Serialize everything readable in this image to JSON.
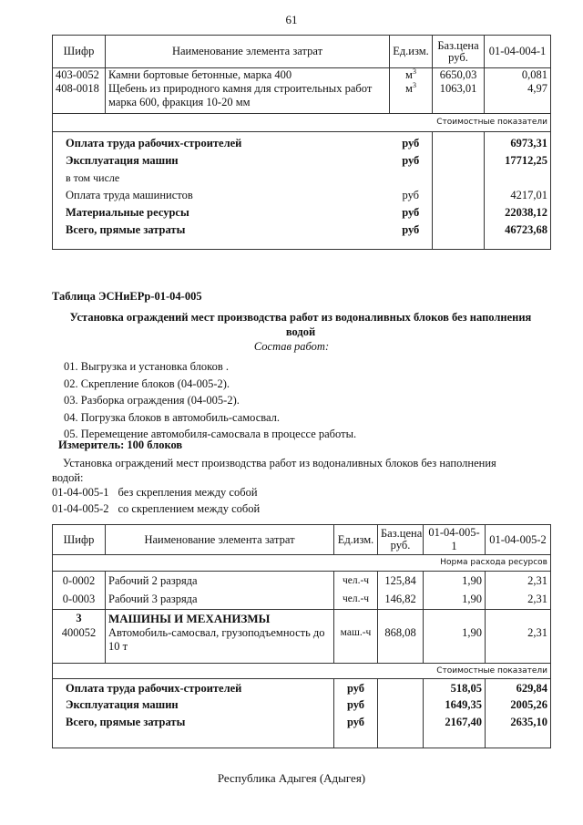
{
  "page_number": "61",
  "table1": {
    "headers": [
      "Шифр",
      "Наименование элемента затрат",
      "Ед.изм.",
      "Баз.цена руб.",
      "01-04-004-1"
    ],
    "rows": [
      {
        "code": "403-0052",
        "name": "Камни бортовые бетонные, марка 400",
        "unit": "м",
        "unit_sup": "3",
        "price": "6650,03",
        "value": "0,081"
      },
      {
        "code": "408-0018",
        "name": "Щебень из природного камня для строительных работ марка 600, фракция  10-20 мм",
        "unit": "м",
        "unit_sup": "3",
        "price": "1063,01",
        "value": "4,97"
      }
    ],
    "section_label": "Стоимостные показатели",
    "summary": [
      {
        "name": "Оплата труда рабочих-строителей",
        "unit": "руб",
        "value": "6973,31",
        "bold": true
      },
      {
        "name": "Эксплуатация машин",
        "unit": "руб",
        "value": "17712,25",
        "bold": true
      },
      {
        "name": "в том числе",
        "unit": "",
        "value": "",
        "bold": false
      },
      {
        "name": "Оплата труда машинистов",
        "unit": "руб",
        "value": "4217,01",
        "bold": false
      },
      {
        "name": "Материальные ресурсы",
        "unit": "руб",
        "value": "22038,12",
        "bold": true
      },
      {
        "name": "Всего, прямые затраты",
        "unit": "руб",
        "value": "46723,68",
        "bold": true
      }
    ]
  },
  "section": {
    "table_title": "Таблица  ЭСНиЕРр-01-04-005",
    "heading": "Установка ограждений мест производства работ из водоналивных блоков без наполнения водой",
    "work_composition_label": "Состав работ:",
    "steps": [
      "01. Выгрузка и установка блоков .",
      "02. Скрепление блоков (04-005-2).",
      "03. Разборка ограждения (04-005-2).",
      "04. Погрузка блоков в автомобиль-самосвал.",
      "05. Перемещение автомобиля-самосвала в процессе работы."
    ],
    "meter": "Измеритель: 100 блоков",
    "description": "Установка ограждений мест производства работ из водоналивных блоков без наполнения водой:",
    "variants": [
      {
        "code": "01-04-005-1",
        "text": "без скрепления между собой"
      },
      {
        "code": "01-04-005-2",
        "text": "со скреплением между собой"
      }
    ]
  },
  "table2": {
    "headers": [
      "Шифр",
      "Наименование элемента затрат",
      "Ед.изм.",
      "Баз.цена руб.",
      "01-04-005-1",
      "01-04-005-2"
    ],
    "norm_label": "Норма расхода ресурсов",
    "rows": [
      {
        "code": "0-0002",
        "name": "Рабочий 2 разряда",
        "unit": "чел.-ч",
        "price": "125,84",
        "v1": "1,90",
        "v2": "2,31"
      },
      {
        "code": "0-0003",
        "name": "Рабочий 3 разряда",
        "unit": "чел.-ч",
        "price": "146,82",
        "v1": "1,90",
        "v2": "2,31"
      }
    ],
    "group": {
      "code": "3",
      "name": "МАШИНЫ И МЕХАНИЗМЫ"
    },
    "machine": {
      "code": "400052",
      "name": "Автомобиль-самосвал, грузоподъемность до 10 т",
      "unit": "маш.-ч",
      "price": "868,08",
      "v1": "1,90",
      "v2": "2,31"
    },
    "section_label": "Стоимостные показатели",
    "summary": [
      {
        "name": "Оплата труда рабочих-строителей",
        "unit": "руб",
        "v1": "518,05",
        "v2": "629,84"
      },
      {
        "name": "Эксплуатация машин",
        "unit": "руб",
        "v1": "1649,35",
        "v2": "2005,26"
      },
      {
        "name": "Всего, прямые затраты",
        "unit": "руб",
        "v1": "2167,40",
        "v2": "2635,10"
      }
    ]
  },
  "footer": "Республика Адыгея (Адыгея)"
}
